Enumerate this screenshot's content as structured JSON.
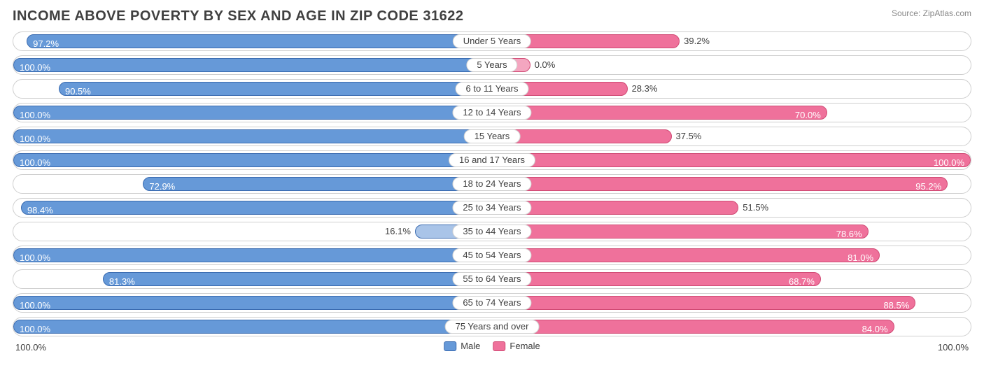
{
  "title": "INCOME ABOVE POVERTY BY SEX AND AGE IN ZIP CODE 31622",
  "source": "Source: ZipAtlas.com",
  "axis": {
    "left": "100.0%",
    "right": "100.0%"
  },
  "legend": {
    "male": {
      "label": "Male",
      "fill": "#6699d8",
      "border": "#3a6bb0"
    },
    "female": {
      "label": "Female",
      "fill": "#ef719b",
      "border": "#d04a74"
    }
  },
  "colors": {
    "male_fill": "#6699d8",
    "male_light": "#a9c4e8",
    "female_fill": "#ef719b",
    "female_light": "#f4a6c0",
    "row_border": "#cfcfcf",
    "text": "#404040",
    "label_inside": "#ffffff",
    "background": "#ffffff"
  },
  "chart": {
    "type": "diverging-bar",
    "max": 100.0,
    "rows": [
      {
        "category": "Under 5 Years",
        "male": 97.2,
        "female": 39.2
      },
      {
        "category": "5 Years",
        "male": 100.0,
        "female": 0.0
      },
      {
        "category": "6 to 11 Years",
        "male": 90.5,
        "female": 28.3
      },
      {
        "category": "12 to 14 Years",
        "male": 100.0,
        "female": 70.0
      },
      {
        "category": "15 Years",
        "male": 100.0,
        "female": 37.5
      },
      {
        "category": "16 and 17 Years",
        "male": 100.0,
        "female": 100.0
      },
      {
        "category": "18 to 24 Years",
        "male": 72.9,
        "female": 95.2
      },
      {
        "category": "25 to 34 Years",
        "male": 98.4,
        "female": 51.5
      },
      {
        "category": "35 to 44 Years",
        "male": 16.1,
        "female": 78.6
      },
      {
        "category": "45 to 54 Years",
        "male": 100.0,
        "female": 81.0
      },
      {
        "category": "55 to 64 Years",
        "male": 81.3,
        "female": 68.7
      },
      {
        "category": "65 to 74 Years",
        "male": 100.0,
        "female": 88.5
      },
      {
        "category": "75 Years and over",
        "male": 100.0,
        "female": 84.0
      }
    ]
  }
}
